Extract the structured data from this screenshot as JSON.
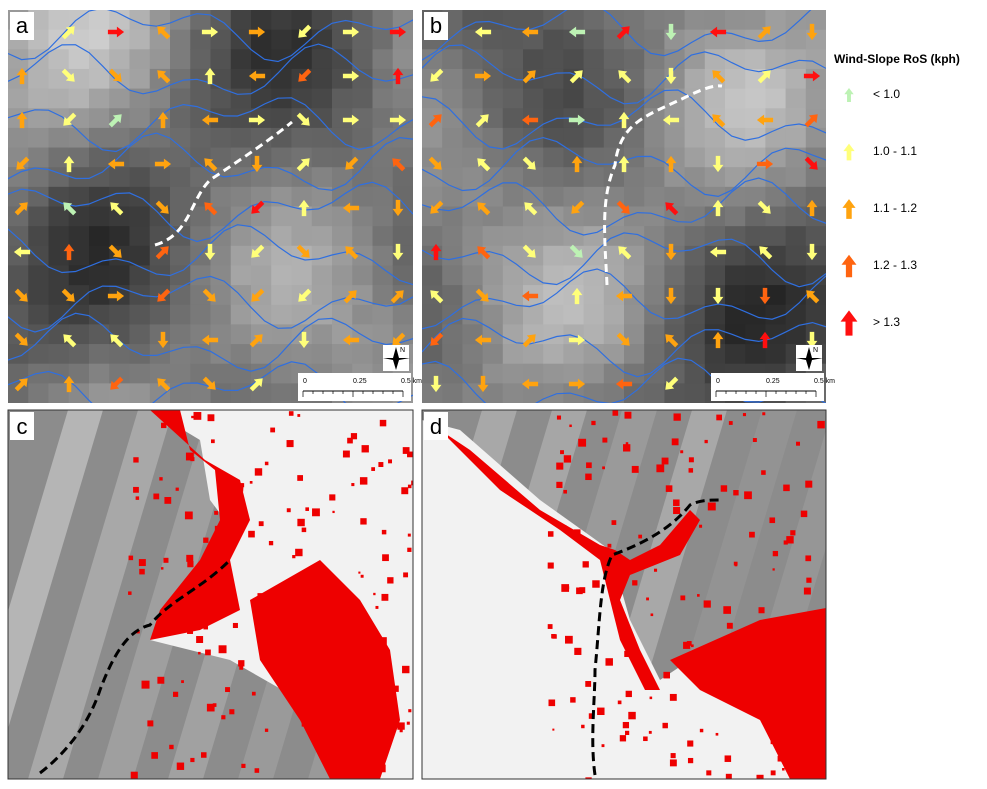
{
  "panels": [
    {
      "label": "a"
    },
    {
      "label": "b"
    },
    {
      "label": "c"
    },
    {
      "label": "d"
    }
  ],
  "legend": {
    "title": "Wind-Slope RoS (kph)",
    "items": [
      {
        "label": "< 1.0",
        "color": "#bdf2b4"
      },
      {
        "label": "1.0 - 1.1",
        "color": "#ffff7a"
      },
      {
        "label": "1.1 - 1.2",
        "color": "#ffa30f"
      },
      {
        "label": "1.2 - 1.3",
        "color": "#ff6410"
      },
      {
        "label": "> 1.3",
        "color": "#ff0f0f"
      }
    ]
  },
  "scale_bar": {
    "labels": [
      "0",
      "0.25",
      "0.5 km"
    ],
    "north": "N"
  }
}
